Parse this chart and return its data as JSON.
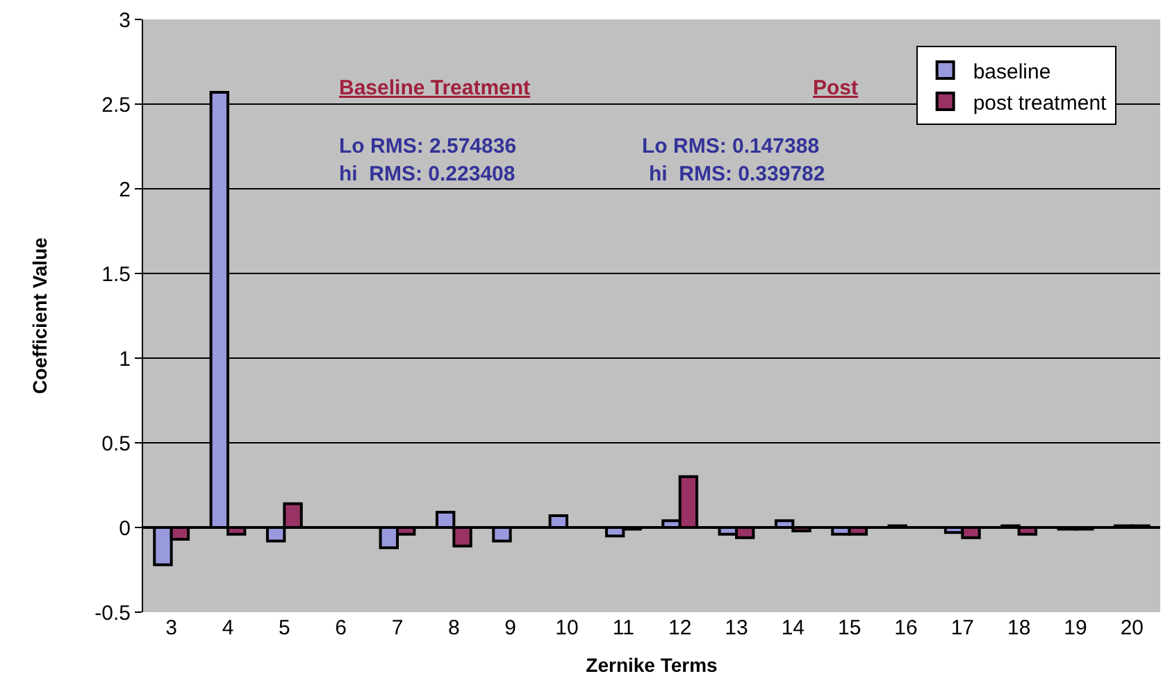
{
  "chart_data": {
    "type": "bar",
    "xlabel": "Zernike Terms",
    "ylabel": "Coefficient Value",
    "categories": [
      "3",
      "4",
      "5",
      "6",
      "7",
      "8",
      "9",
      "10",
      "11",
      "12",
      "13",
      "14",
      "15",
      "16",
      "17",
      "18",
      "19",
      "20"
    ],
    "series": [
      {
        "name": "baseline",
        "color": "#9999dd",
        "values": [
          -0.22,
          2.57,
          -0.08,
          0,
          -0.12,
          0.09,
          -0.08,
          0.07,
          -0.05,
          0.04,
          -0.04,
          0.04,
          -0.04,
          0.01,
          -0.03,
          0.01,
          -0.01,
          0.01
        ]
      },
      {
        "name": "post treatment",
        "color": "#993366",
        "values": [
          -0.07,
          -0.04,
          0.14,
          0,
          -0.04,
          -0.11,
          0,
          0,
          -0.01,
          0.3,
          -0.06,
          -0.02,
          -0.04,
          0,
          -0.06,
          -0.04,
          -0.01,
          0.01
        ]
      }
    ],
    "ylim": [
      -0.5,
      3
    ],
    "yticks": [
      -0.5,
      0,
      0.5,
      1,
      1.5,
      2,
      2.5,
      3
    ],
    "grid": "y",
    "legend": "top right",
    "annotations": [
      "Baseline Treatment",
      "Lo RMS: 2.574836",
      "hi  RMS: 0.223408",
      "Post",
      "Lo RMS: 0.147388",
      "hi  RMS: 0.339782"
    ]
  }
}
